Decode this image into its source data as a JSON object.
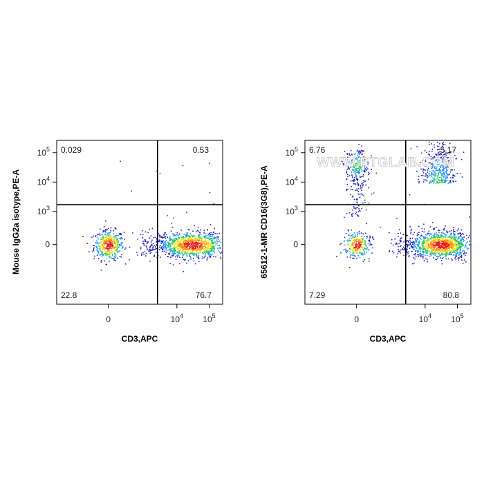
{
  "watermark": "WWW.PTGLAB.COM",
  "colors": {
    "gate": "#000000",
    "frame": "#000000",
    "density": [
      "#1f1fb4",
      "#1e90ff",
      "#22c55e",
      "#f2e11b",
      "#ff8c00",
      "#e02020"
    ]
  },
  "chart_data": [
    {
      "type": "scatter",
      "title": "",
      "xlabel": "CD3,APC",
      "ylabel": "Mouse IgG2a isotype,PE-A",
      "scale": "biexponential",
      "x_ticks": [
        {
          "value": 0,
          "label": "0"
        },
        {
          "value": 10000,
          "label": "10^4"
        },
        {
          "value": 100000,
          "label": "10^5"
        }
      ],
      "y_ticks": [
        {
          "value": 0,
          "label": "0"
        },
        {
          "value": 1000,
          "label": "10^3"
        },
        {
          "value": 10000,
          "label": "10^4"
        },
        {
          "value": 100000,
          "label": "10^5"
        }
      ],
      "quadrant_gate": {
        "x": 2500,
        "y": 1700
      },
      "quadrant_percent": {
        "top_left": "0.029",
        "top_right": "0.53",
        "bottom_left": "22.8",
        "bottom_right": "76.7"
      },
      "populations": [
        {
          "name": "",
          "x_center": 0,
          "y_center": 0,
          "weight": 0.23
        },
        {
          "name": "",
          "x_center": 30000,
          "y_center": 0,
          "weight": 0.77
        }
      ]
    },
    {
      "type": "scatter",
      "title": "",
      "xlabel": "CD3,APC",
      "ylabel": "65612-1-MR CD16(3G8),PE-A",
      "scale": "biexponential",
      "x_ticks": [
        {
          "value": 0,
          "label": "0"
        },
        {
          "value": 10000,
          "label": "10^4"
        },
        {
          "value": 100000,
          "label": "10^5"
        }
      ],
      "y_ticks": [
        {
          "value": 0,
          "label": "0"
        },
        {
          "value": 1000,
          "label": "10^3"
        },
        {
          "value": 10000,
          "label": "10^4"
        },
        {
          "value": 100000,
          "label": "10^5"
        }
      ],
      "quadrant_gate": {
        "x": 2500,
        "y": 1700
      },
      "quadrant_percent": {
        "top_left": "6.76",
        "top_right": "5.17",
        "bottom_left": "7.29",
        "bottom_right": "80.8"
      },
      "populations": [
        {
          "name": "",
          "x_center": 0,
          "y_center": 40000,
          "weight": 0.068
        },
        {
          "name": "",
          "x_center": 0,
          "y_center": 0,
          "weight": 0.073
        },
        {
          "name": "",
          "x_center": 30000,
          "y_center": 0,
          "weight": 0.81
        },
        {
          "name": "",
          "x_center": 25000,
          "y_center": 5000,
          "weight": 0.05
        }
      ]
    }
  ]
}
